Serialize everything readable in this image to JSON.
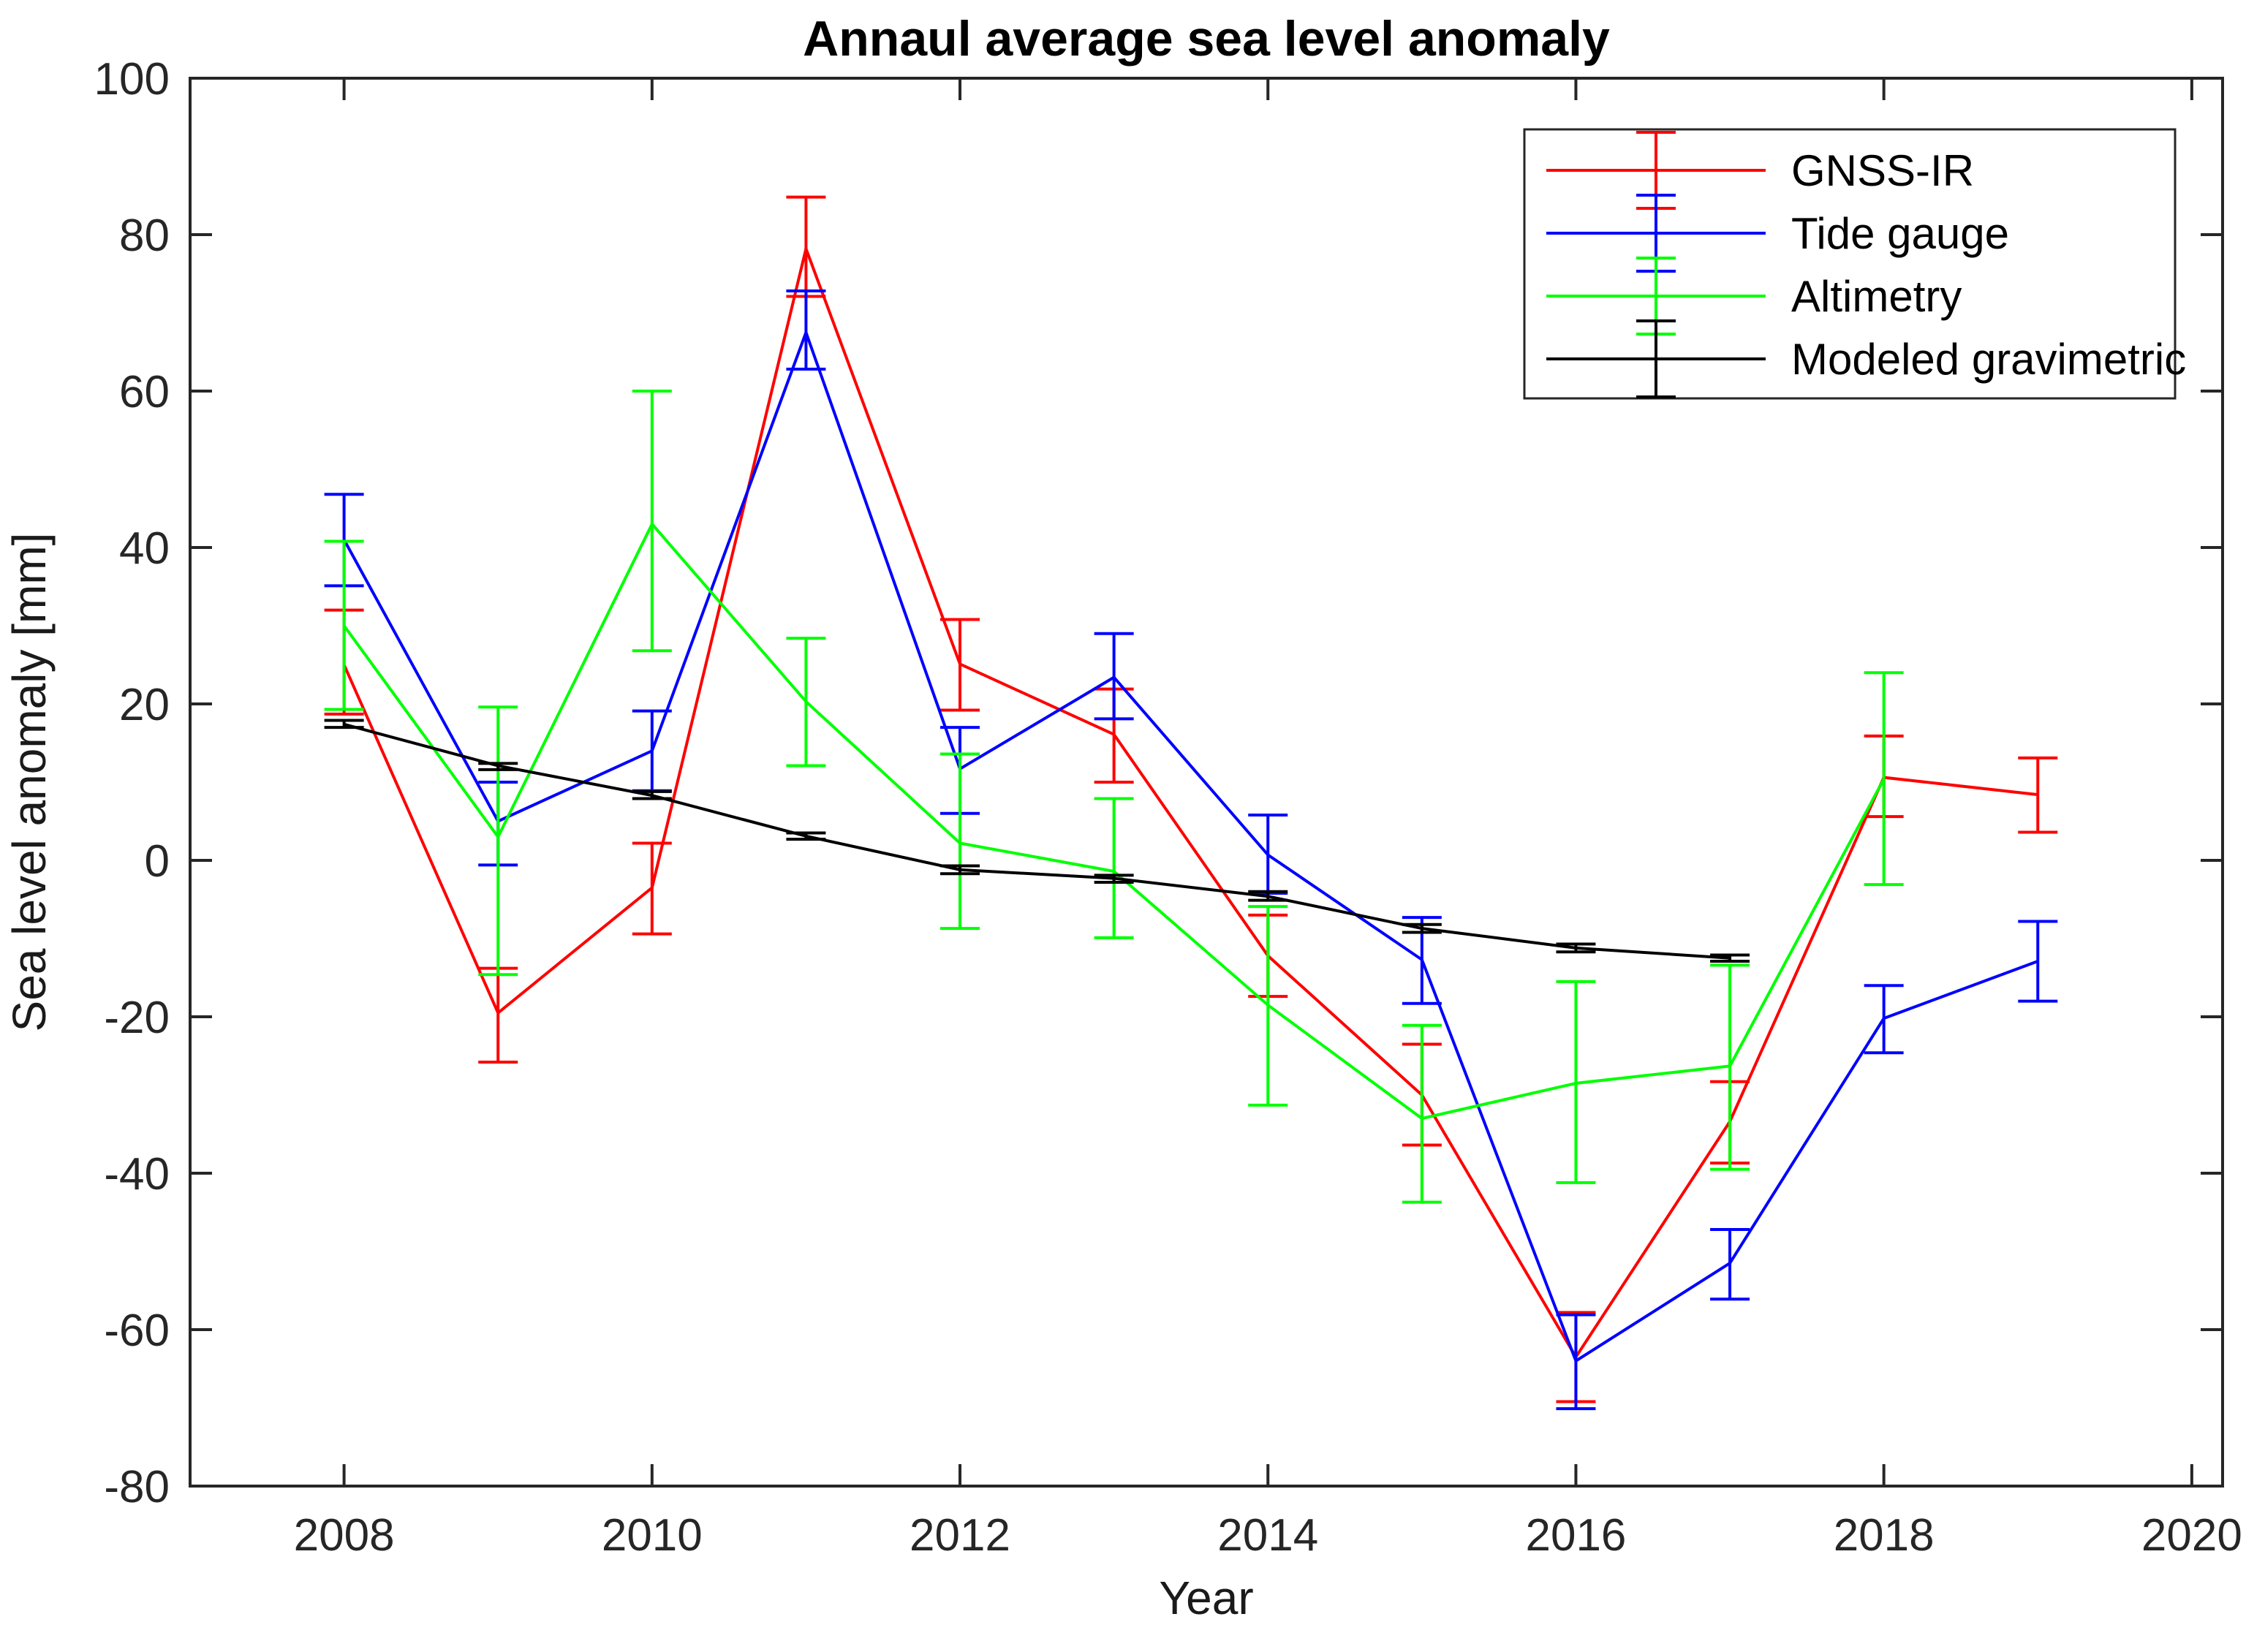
{
  "title": "Annaul average sea level anomaly",
  "chart_data": {
    "type": "line",
    "title": "Annaul average sea level anomaly",
    "xlabel": "Year",
    "ylabel": "Sea level anomaly [mm]",
    "xlim": [
      2007,
      2020.2
    ],
    "ylim": [
      -80,
      100
    ],
    "xticks": [
      2008,
      2010,
      2012,
      2014,
      2016,
      2018,
      2020
    ],
    "yticks": [
      -80,
      -60,
      -40,
      -20,
      0,
      20,
      40,
      60,
      80,
      100
    ],
    "grid": false,
    "legend_position": "top-right",
    "axis_color": "#262626",
    "background_color": "#ffffff",
    "series": [
      {
        "name": "GNSS-IR",
        "color": "#ff0000",
        "x": [
          2008,
          2009,
          2010,
          2011,
          2012,
          2013,
          2014,
          2015,
          2016,
          2017,
          2018,
          2019
        ],
        "y": [
          25.0,
          -19.5,
          -3.5,
          78.2,
          25.1,
          16.1,
          -12.2,
          -30.0,
          -63.5,
          -33.4,
          10.6,
          8.4
        ],
        "err_lo": [
          18.7,
          -25.8,
          -9.4,
          72.1,
          19.2,
          10.0,
          -17.4,
          -36.4,
          -69.2,
          -38.7,
          5.6,
          3.6
        ],
        "err_hi": [
          32.0,
          -13.8,
          2.2,
          84.8,
          30.8,
          21.9,
          -7.0,
          -23.5,
          -57.8,
          -28.3,
          15.9,
          13.1
        ]
      },
      {
        "name": "Tide gauge",
        "color": "#0000ff",
        "x": [
          2008,
          2009,
          2010,
          2011,
          2012,
          2013,
          2014,
          2015,
          2016,
          2017,
          2018,
          2019
        ],
        "y": [
          41.0,
          5.0,
          14.0,
          67.5,
          11.7,
          23.4,
          0.7,
          -12.7,
          -64.0,
          -51.5,
          -20.2,
          -12.9
        ],
        "err_lo": [
          35.1,
          -0.6,
          8.9,
          62.8,
          6.0,
          18.1,
          -4.2,
          -18.3,
          -70.1,
          -56.1,
          -24.6,
          -18.0
        ],
        "err_hi": [
          46.8,
          10.0,
          19.1,
          72.8,
          17.0,
          29.0,
          5.8,
          -7.3,
          -58.1,
          -47.2,
          -16.0,
          -7.8
        ]
      },
      {
        "name": "Altimetry",
        "color": "#00ff00",
        "x": [
          2008,
          2009,
          2010,
          2011,
          2012,
          2013,
          2014,
          2015,
          2016,
          2017,
          2018
        ],
        "y": [
          30.0,
          3.0,
          43.0,
          20.3,
          2.2,
          -1.4,
          -18.5,
          -33.0,
          -28.5,
          -26.3,
          10.4
        ],
        "err_lo": [
          19.3,
          -14.6,
          26.8,
          12.1,
          -8.7,
          -9.9,
          -31.3,
          -43.7,
          -41.2,
          -39.5,
          -3.1
        ],
        "err_hi": [
          40.8,
          19.6,
          60.0,
          28.4,
          13.6,
          7.9,
          -5.9,
          -21.1,
          -15.5,
          -13.4,
          24.0
        ]
      },
      {
        "name": "Modeled gravimetric",
        "color": "#000000",
        "x": [
          2008,
          2009,
          2010,
          2011,
          2012,
          2013,
          2014,
          2015,
          2016,
          2017
        ],
        "y": [
          17.4,
          12.1,
          8.3,
          3.1,
          -1.2,
          -2.3,
          -4.6,
          -8.7,
          -11.2,
          -12.5
        ],
        "err_lo": [
          17.0,
          11.6,
          7.9,
          2.7,
          -1.7,
          -2.8,
          -5.1,
          -9.2,
          -11.7,
          -12.9
        ],
        "err_hi": [
          17.9,
          12.4,
          8.8,
          3.5,
          -0.7,
          -1.9,
          -4.0,
          -8.2,
          -10.7,
          -12.1
        ]
      }
    ]
  }
}
